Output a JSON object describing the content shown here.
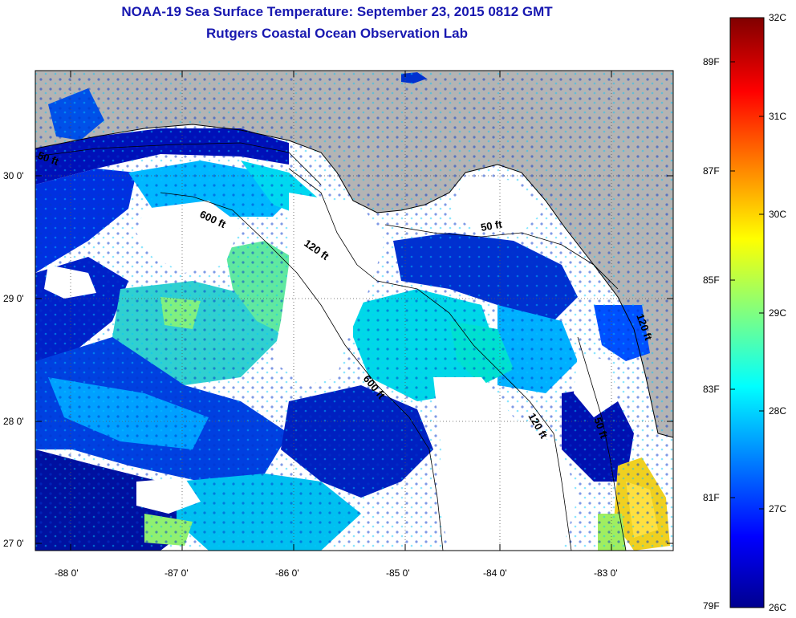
{
  "header": {
    "title": "NOAA-19 Sea Surface Temperature:  September 23, 2015 0812 GMT",
    "subtitle": "Rutgers Coastal Ocean Observation Lab"
  },
  "map": {
    "lat_ticks": [
      "30 0'",
      "29 0'",
      "28 0'",
      "27 0'"
    ],
    "lon_ticks": [
      "-88 0'",
      "-87 0'",
      "-86 0'",
      "-85 0'",
      "-84 0'",
      "-83 0'"
    ],
    "contours": [
      "50 ft",
      "600 ft",
      "120 ft",
      "50 ft",
      "120 ft",
      "600 ft",
      "120 ft",
      "50 ft"
    ]
  },
  "colorbar": {
    "fahrenheit": [
      "89F",
      "87F",
      "85F",
      "83F",
      "81F",
      "79F"
    ],
    "celsius": [
      "32C",
      "31C",
      "30C",
      "29C",
      "28C",
      "27C",
      "26C"
    ],
    "colors": [
      "#00008f",
      "#0000ff",
      "#0080ff",
      "#00ffff",
      "#80ff80",
      "#ffff00",
      "#ff8000",
      "#ff0000",
      "#800000"
    ]
  },
  "colors": {
    "land": "#b4b4b4",
    "cloud": "#ffffff",
    "title": "#1818b0"
  }
}
